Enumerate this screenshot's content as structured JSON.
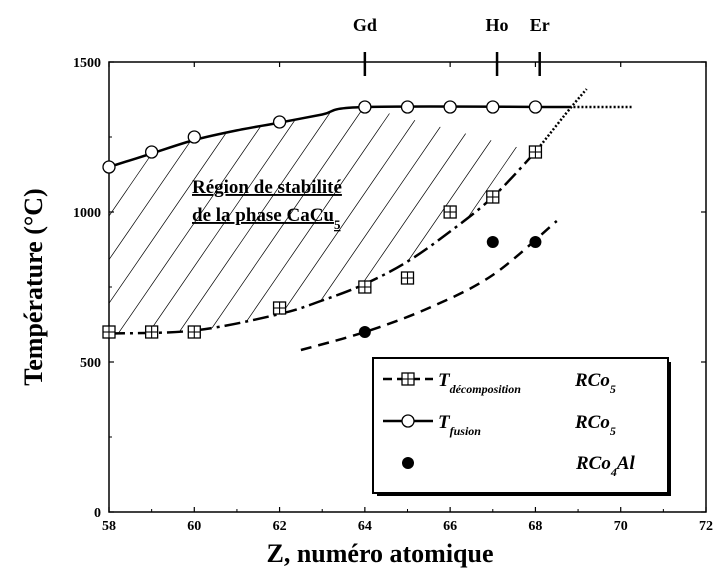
{
  "chart_data": {
    "type": "scatter",
    "xlabel": "Z, numéro atomique",
    "ylabel": "Température (°C)",
    "xlim": [
      58,
      72
    ],
    "ylim": [
      0,
      1500
    ],
    "xticks": [
      58,
      60,
      62,
      64,
      66,
      68,
      70,
      72
    ],
    "yticks": [
      0,
      500,
      1000,
      1500
    ],
    "grid": false,
    "legend_position": "bottom-right",
    "element_markers": [
      {
        "label": "Gd",
        "x": 64
      },
      {
        "label": "Ho",
        "x": 67.1
      },
      {
        "label": "Er",
        "x": 68.1
      }
    ],
    "region_label": {
      "line1": "Région de stabilité",
      "line2": "de la phase CaCu",
      "line2_sub": "5"
    },
    "series": [
      {
        "name": "T décomposition RCo5",
        "legend": {
          "main": "T",
          "sub": "décomposition",
          "formula": "RCo",
          "formula_sub": "5"
        },
        "marker": "boxed-plus",
        "points": [
          {
            "x": 58,
            "y": 600
          },
          {
            "x": 59,
            "y": 600
          },
          {
            "x": 60,
            "y": 600
          },
          {
            "x": 62,
            "y": 680
          },
          {
            "x": 64,
            "y": 750
          },
          {
            "x": 65,
            "y": 780
          },
          {
            "x": 66,
            "y": 1000
          },
          {
            "x": 67,
            "y": 1050
          },
          {
            "x": 68,
            "y": 1200
          }
        ],
        "fit_curve": [
          {
            "x": 58,
            "y": 595
          },
          {
            "x": 60,
            "y": 605
          },
          {
            "x": 62,
            "y": 660
          },
          {
            "x": 63,
            "y": 705
          },
          {
            "x": 64,
            "y": 760
          },
          {
            "x": 65,
            "y": 835
          },
          {
            "x": 66,
            "y": 935
          },
          {
            "x": 67,
            "y": 1050
          },
          {
            "x": 68,
            "y": 1200
          }
        ],
        "extrapolation": [
          {
            "x": 68,
            "y": 1200
          },
          {
            "x": 68.5,
            "y": 1290
          },
          {
            "x": 68.9,
            "y": 1360
          },
          {
            "x": 69.2,
            "y": 1410
          }
        ]
      },
      {
        "name": "T fusion RCo5",
        "legend": {
          "main": "T",
          "sub": "fusion",
          "formula": "RCo",
          "formula_sub": "5"
        },
        "marker": "open-circle",
        "points": [
          {
            "x": 58,
            "y": 1150
          },
          {
            "x": 59,
            "y": 1200
          },
          {
            "x": 60,
            "y": 1250
          },
          {
            "x": 62,
            "y": 1300
          },
          {
            "x": 64,
            "y": 1350
          },
          {
            "x": 65,
            "y": 1350
          },
          {
            "x": 66,
            "y": 1350
          },
          {
            "x": 67,
            "y": 1350
          },
          {
            "x": 68,
            "y": 1350
          }
        ],
        "fit_curve": [
          {
            "x": 58,
            "y": 1150
          },
          {
            "x": 59,
            "y": 1195
          },
          {
            "x": 60,
            "y": 1240
          },
          {
            "x": 61,
            "y": 1272
          },
          {
            "x": 62,
            "y": 1298
          },
          {
            "x": 63,
            "y": 1325
          },
          {
            "x": 64,
            "y": 1350
          },
          {
            "x": 68.8,
            "y": 1350
          }
        ],
        "extrapolation": [
          {
            "x": 68.8,
            "y": 1350
          },
          {
            "x": 70.3,
            "y": 1350
          }
        ]
      },
      {
        "name": "RCo4Al",
        "legend": {
          "main": "",
          "sub": "",
          "formula": "RCo",
          "formula_sub": "4",
          "formula_tail": "Al"
        },
        "marker": "filled-circle",
        "points": [
          {
            "x": 64,
            "y": 600
          },
          {
            "x": 67,
            "y": 900
          },
          {
            "x": 68,
            "y": 900
          }
        ],
        "fit_curve": [
          {
            "x": 62.5,
            "y": 540
          },
          {
            "x": 64,
            "y": 600
          },
          {
            "x": 65.5,
            "y": 680
          },
          {
            "x": 67,
            "y": 790
          },
          {
            "x": 68.5,
            "y": 970
          }
        ]
      }
    ]
  }
}
